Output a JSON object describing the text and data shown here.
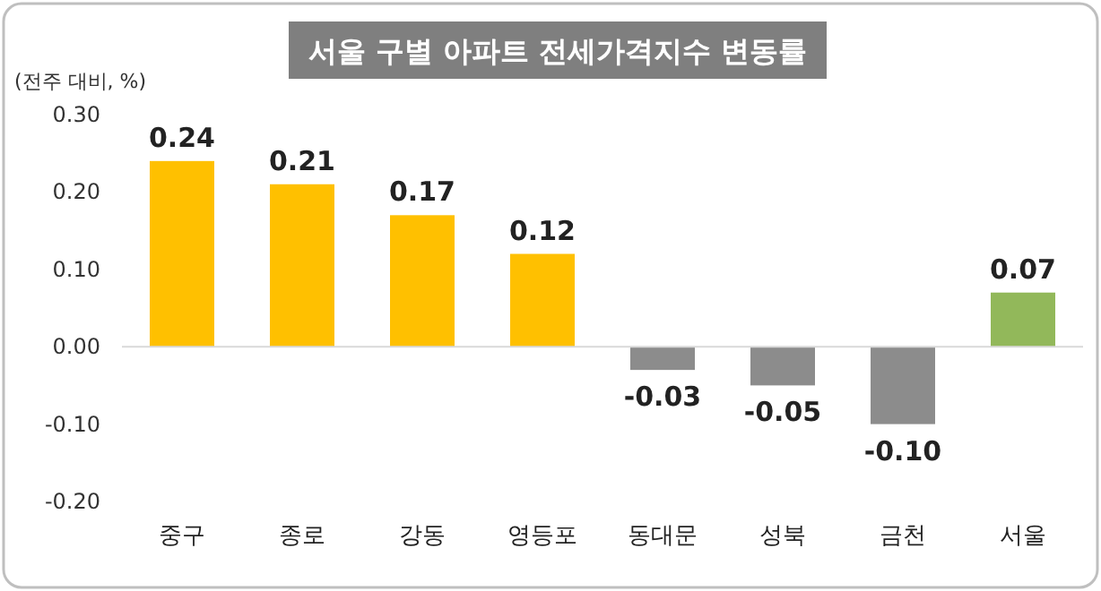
{
  "chart_data": {
    "type": "bar",
    "title": "서울 구별 아파트 전세가격지수 변동률",
    "ylabel": "(전주 대비, %)",
    "categories": [
      "중구",
      "종로",
      "강동",
      "영등포",
      "동대문",
      "성북",
      "금천",
      "서울"
    ],
    "values": [
      0.24,
      0.21,
      0.17,
      0.12,
      -0.03,
      -0.05,
      -0.1,
      0.07
    ],
    "value_labels": [
      "0.24",
      "0.21",
      "0.17",
      "0.12",
      "-0.03",
      "-0.05",
      "-0.10",
      "0.07"
    ],
    "colors": [
      "#ffc000",
      "#ffc000",
      "#ffc000",
      "#ffc000",
      "#8c8c8c",
      "#8c8c8c",
      "#8c8c8c",
      "#92b85a"
    ],
    "ylim": [
      -0.2,
      0.3
    ],
    "yticks": [
      {
        "value": 0.3,
        "label": "0.30"
      },
      {
        "value": 0.2,
        "label": "0.20"
      },
      {
        "value": 0.1,
        "label": "0.10"
      },
      {
        "value": 0,
        "label": "0.00"
      },
      {
        "value": -0.1,
        "label": "-0.10"
      },
      {
        "value": -0.2,
        "label": "-0.20"
      }
    ]
  }
}
